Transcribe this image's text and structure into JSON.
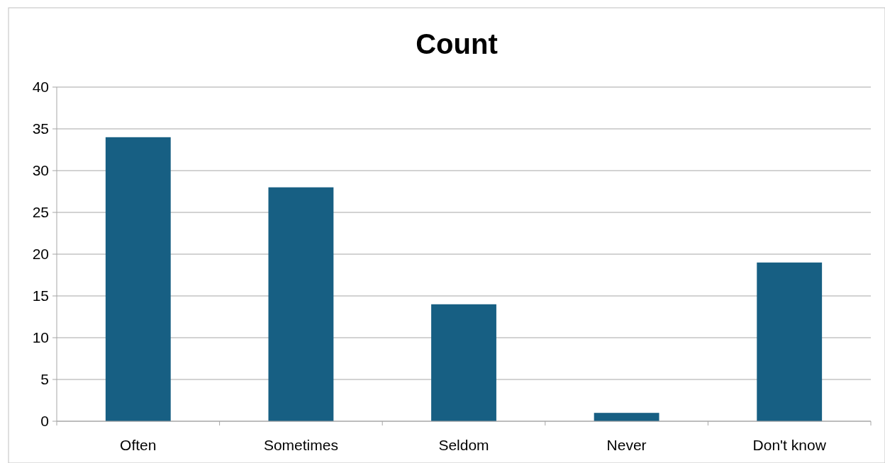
{
  "chart_data": {
    "type": "bar",
    "title": "Count",
    "categories": [
      "Often",
      "Sometimes",
      "Seldom",
      "Never",
      "Don't know"
    ],
    "values": [
      34,
      28,
      14,
      1,
      19
    ],
    "color": "#175f83",
    "ylim": [
      0,
      40
    ],
    "yticks": [
      0,
      5,
      10,
      15,
      20,
      25,
      30,
      35,
      40
    ],
    "grid": "y"
  }
}
